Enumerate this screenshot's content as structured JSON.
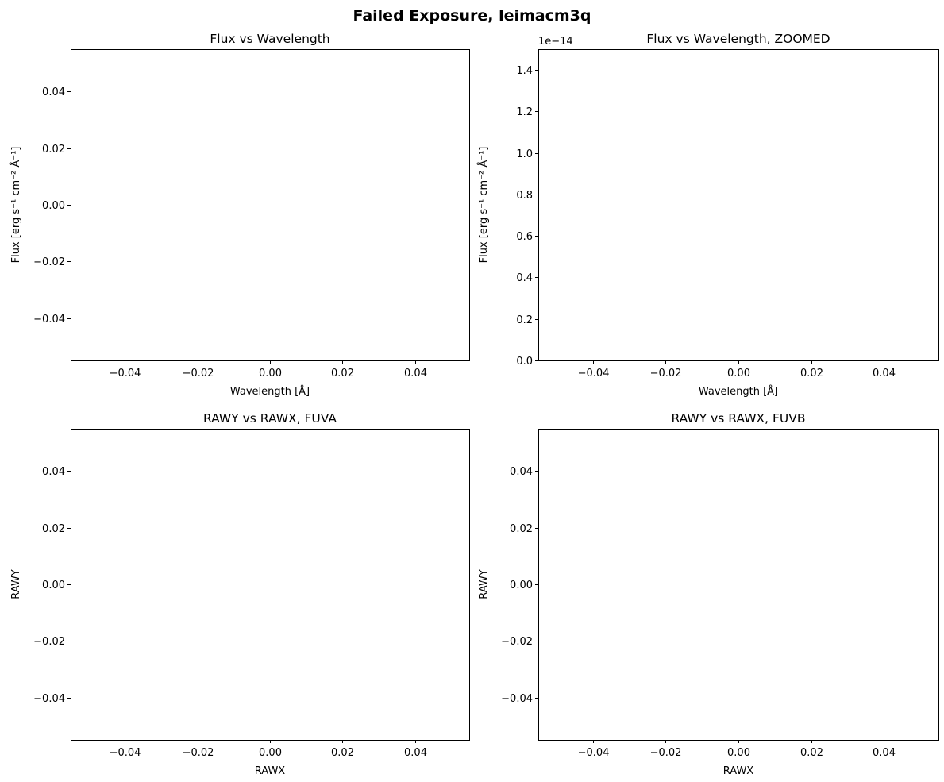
{
  "figure_title": "Failed Exposure, leimacm3q",
  "chart_data": [
    {
      "type": "line",
      "title": "Flux vs Wavelength",
      "xlabel": "Wavelength [Å]",
      "ylabel": "Flux [erg s⁻¹ cm⁻² Å⁻¹]",
      "xlim": [
        -0.055,
        0.055
      ],
      "ylim": [
        -0.055,
        0.055
      ],
      "xticks": [
        -0.04,
        -0.02,
        0.0,
        0.02,
        0.04
      ],
      "xtick_labels": [
        "−0.04",
        "−0.02",
        "0.00",
        "0.02",
        "0.04"
      ],
      "yticks": [
        -0.04,
        -0.02,
        0.0,
        0.02,
        0.04
      ],
      "ytick_labels": [
        "−0.04",
        "−0.02",
        "0.00",
        "0.02",
        "0.04"
      ],
      "offset_text": "",
      "series": [],
      "grid": false
    },
    {
      "type": "line",
      "title": "Flux vs Wavelength, ZOOMED",
      "xlabel": "Wavelength [Å]",
      "ylabel": "Flux [erg s⁻¹ cm⁻² Å⁻¹]",
      "xlim": [
        -0.055,
        0.055
      ],
      "ylim": [
        0.0,
        1.5
      ],
      "xticks": [
        -0.04,
        -0.02,
        0.0,
        0.02,
        0.04
      ],
      "xtick_labels": [
        "−0.04",
        "−0.02",
        "0.00",
        "0.02",
        "0.04"
      ],
      "yticks": [
        0.0,
        0.2,
        0.4,
        0.6,
        0.8,
        1.0,
        1.2,
        1.4
      ],
      "ytick_labels": [
        "0.0",
        "0.2",
        "0.4",
        "0.6",
        "0.8",
        "1.0",
        "1.2",
        "1.4"
      ],
      "offset_text": "1e−14",
      "series": [],
      "grid": false
    },
    {
      "type": "scatter",
      "title": "RAWY vs RAWX, FUVA",
      "xlabel": "RAWX",
      "ylabel": "RAWY",
      "xlim": [
        -0.055,
        0.055
      ],
      "ylim": [
        -0.055,
        0.055
      ],
      "xticks": [
        -0.04,
        -0.02,
        0.0,
        0.02,
        0.04
      ],
      "xtick_labels": [
        "−0.04",
        "−0.02",
        "0.00",
        "0.02",
        "0.04"
      ],
      "yticks": [
        -0.04,
        -0.02,
        0.0,
        0.02,
        0.04
      ],
      "ytick_labels": [
        "−0.04",
        "−0.02",
        "0.00",
        "0.02",
        "0.04"
      ],
      "offset_text": "",
      "series": [],
      "grid": false
    },
    {
      "type": "scatter",
      "title": "RAWY vs RAWX, FUVB",
      "xlabel": "RAWX",
      "ylabel": "RAWY",
      "xlim": [
        -0.055,
        0.055
      ],
      "ylim": [
        -0.055,
        0.055
      ],
      "xticks": [
        -0.04,
        -0.02,
        0.0,
        0.02,
        0.04
      ],
      "xtick_labels": [
        "−0.04",
        "−0.02",
        "0.00",
        "0.02",
        "0.04"
      ],
      "yticks": [
        -0.04,
        -0.02,
        0.0,
        0.02,
        0.04
      ],
      "ytick_labels": [
        "−0.04",
        "−0.02",
        "0.00",
        "0.02",
        "0.04"
      ],
      "offset_text": "",
      "series": [],
      "grid": false
    }
  ]
}
